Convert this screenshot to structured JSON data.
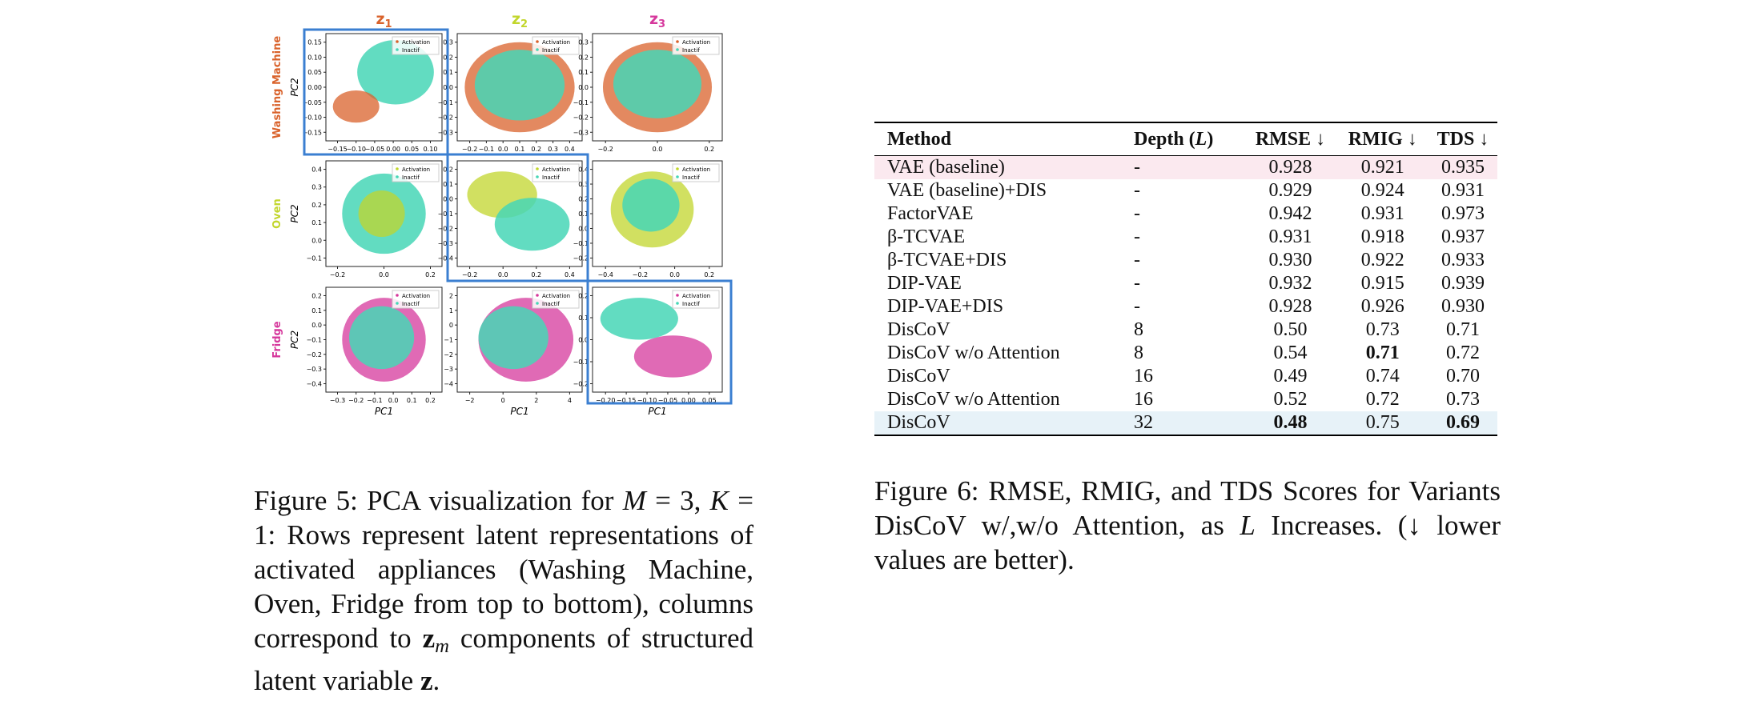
{
  "figure5": {
    "column_titles": [
      {
        "symbol": "z",
        "index": "1"
      },
      {
        "symbol": "z",
        "index": "2"
      },
      {
        "symbol": "z",
        "index": "3"
      }
    ],
    "row_labels": [
      "Washing Machine",
      "Oven",
      "Fridge"
    ],
    "y_axis_label": "PC2",
    "x_axis_label": "PC1",
    "legend": [
      "Activation",
      "Inactif"
    ],
    "panels": [
      {
        "xticks": [
          "−0.15",
          "−0.10",
          "−0.05",
          "0.00",
          "0.05",
          "0.10"
        ],
        "yticks": [
          "0.15",
          "0.10",
          "0.05",
          "0.00",
          "−0.05",
          "−0.10",
          "−0.15"
        ]
      },
      {
        "xticks": [
          "−0.2",
          "−0.1",
          "0.0",
          "0.1",
          "0.2",
          "0.3",
          "0.4"
        ],
        "yticks": [
          "0.3",
          "0.2",
          "0.1",
          "0.0",
          "−0.1",
          "−0.2",
          "−0.3"
        ]
      },
      {
        "xticks": [
          "−0.2",
          "0.0",
          "0.2"
        ],
        "yticks": [
          "0.3",
          "0.2",
          "0.1",
          "0.0",
          "−0.1",
          "−0.2",
          "−0.3"
        ]
      },
      {
        "xticks": [
          "−0.2",
          "0.0",
          "0.2"
        ],
        "yticks": [
          "0.4",
          "0.3",
          "0.2",
          "0.1",
          "0.0",
          "−0.1"
        ]
      },
      {
        "xticks": [
          "−0.2",
          "0.0",
          "0.2",
          "0.4"
        ],
        "yticks": [
          "0.2",
          "0.1",
          "0.0",
          "−0.1",
          "−0.2",
          "−0.3",
          "−0.4"
        ]
      },
      {
        "xticks": [
          "−0.4",
          "−0.2",
          "0.0",
          "0.2"
        ],
        "yticks": [
          "0.4",
          "0.3",
          "0.2",
          "0.1",
          "0.0",
          "−0.1",
          "−0.2"
        ]
      },
      {
        "xticks": [
          "−0.3",
          "−0.2",
          "−0.1",
          "0.0",
          "0.1",
          "0.2"
        ],
        "yticks": [
          "0.2",
          "0.1",
          "0.0",
          "−0.1",
          "−0.2",
          "−0.3",
          "−0.4"
        ]
      },
      {
        "xticks": [
          "−2",
          "0",
          "2",
          "4"
        ],
        "yticks": [
          "2",
          "1",
          "0",
          "−1",
          "−2",
          "−3",
          "−4"
        ]
      },
      {
        "xticks": [
          "−0.20",
          "−0.15",
          "−0.10",
          "−0.05",
          "0.00",
          "0.05"
        ],
        "yticks": [
          "0.2",
          "0.1",
          "0.0",
          "−0.1",
          "−0.2"
        ]
      }
    ],
    "caption": [
      {
        "text": "Figure 5: PCA visualization for "
      },
      {
        "text": "M",
        "style": "italic"
      },
      {
        "text": " = 3, "
      },
      {
        "text": "K",
        "style": "italic"
      },
      {
        "text": " = 1: Rows represent latent representations of activated appliances (Washing Machine, Oven, Fridge from top to bottom), columns correspond to "
      },
      {
        "text": "z",
        "style": "bold"
      },
      {
        "text": "m",
        "style": "sub"
      },
      {
        "text": " components of structured latent variable "
      },
      {
        "text": "z",
        "style": "bold"
      },
      {
        "text": "."
      }
    ]
  },
  "table": {
    "header": [
      [
        {
          "text": "Method"
        }
      ],
      [
        {
          "text": "Depth ("
        },
        {
          "text": "L",
          "style": "italic"
        },
        {
          "text": ")"
        }
      ],
      [
        {
          "text": "RMSE ↓"
        }
      ],
      [
        {
          "text": "RMIG ↓"
        }
      ],
      [
        {
          "text": "TDS ↓"
        }
      ]
    ],
    "rows": [
      [
        "VAE (baseline)",
        "-",
        "0.928",
        "0.921",
        "0.935"
      ],
      [
        "VAE (baseline)+DIS",
        "-",
        "0.929",
        "0.924",
        "0.931"
      ],
      [
        "FactorVAE",
        "-",
        "0.942",
        "0.931",
        "0.973"
      ],
      [
        "β-TCVAE",
        "-",
        "0.931",
        "0.918",
        "0.937"
      ],
      [
        "β-TCVAE+DIS",
        "-",
        "0.930",
        "0.922",
        "0.933"
      ],
      [
        "DIP-VAE",
        "-",
        "0.932",
        "0.915",
        "0.939"
      ],
      [
        "DIP-VAE+DIS",
        "-",
        "0.928",
        "0.926",
        "0.930"
      ],
      [
        "DisCoV",
        "8",
        "0.50",
        "0.73",
        "0.71"
      ],
      [
        "DisCoV w/o Attention",
        "8",
        "0.54",
        "0.71",
        "0.72"
      ],
      [
        "DisCoV",
        "16",
        "0.49",
        "0.74",
        "0.70"
      ],
      [
        "DisCoV w/o Attention",
        "16",
        "0.52",
        "0.72",
        "0.73"
      ],
      [
        "DisCoV",
        "32",
        "0.48",
        "0.75",
        "0.69"
      ]
    ],
    "bold_cells": [
      [
        8,
        3
      ],
      [
        11,
        2
      ],
      [
        11,
        4
      ]
    ],
    "row_highlights": [
      {
        "row": 0,
        "color": "#fbe9ef"
      },
      {
        "row": 11,
        "color": "#e7f2f8"
      }
    ],
    "caption": [
      {
        "text": "Figure 6: RMSE, RMIG, and TDS Scores for Variants DisCoV w/,w/o Attention, as "
      },
      {
        "text": "L",
        "style": "italic"
      },
      {
        "text": " Increases. (↓ lower values are better)."
      }
    ]
  }
}
